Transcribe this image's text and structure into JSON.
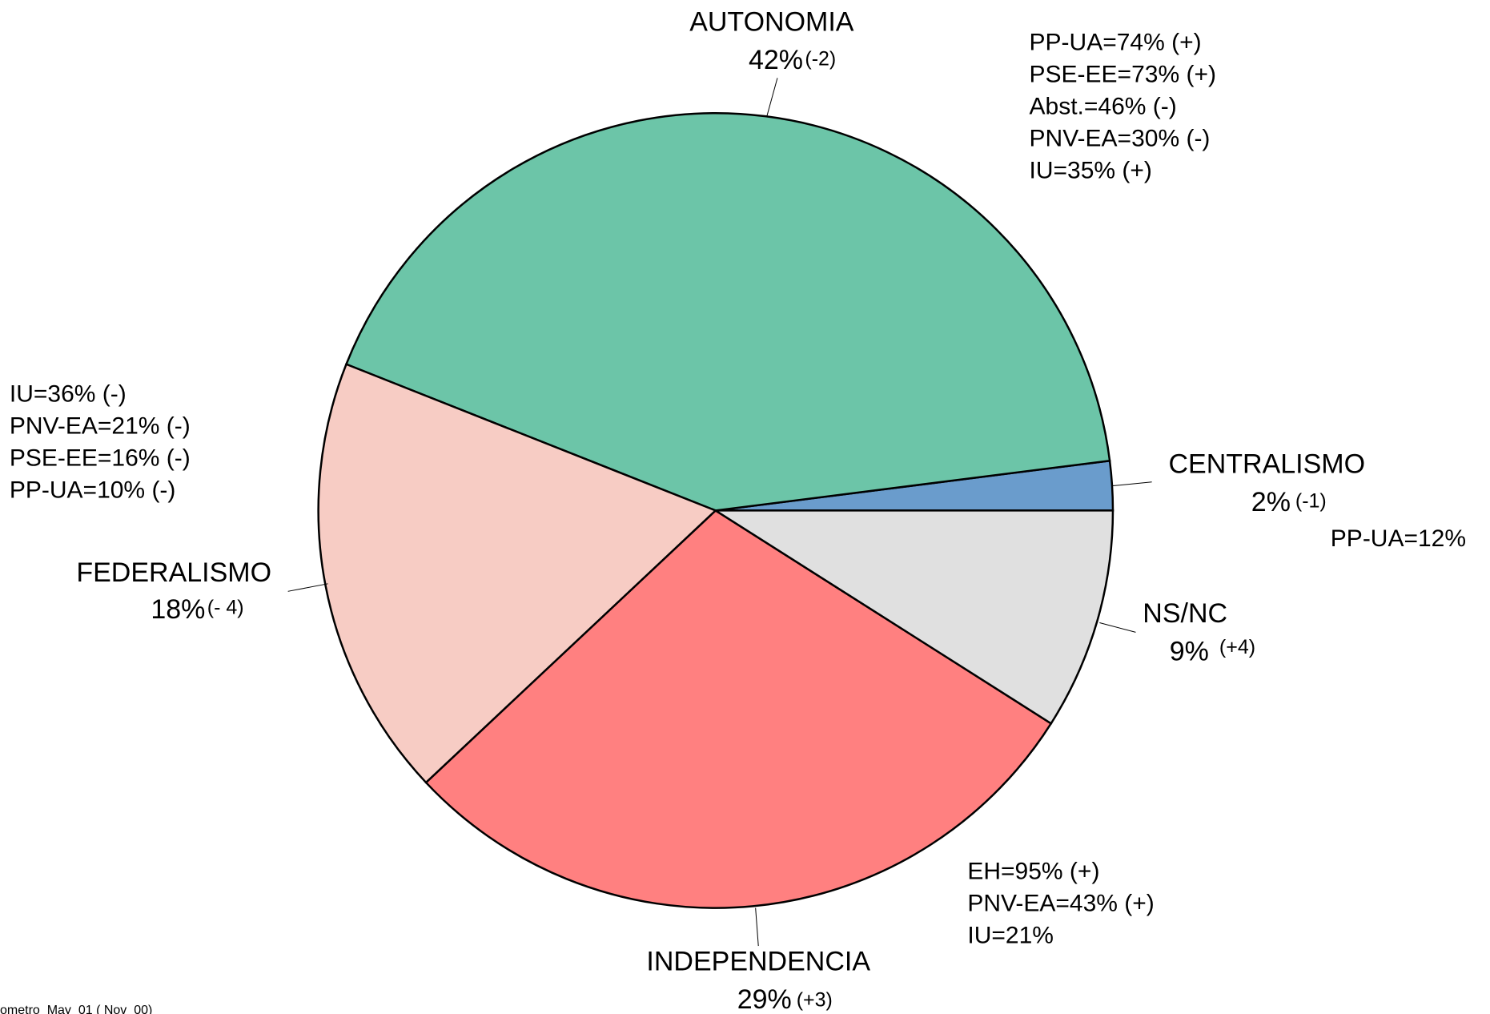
{
  "chart_data": {
    "type": "pie",
    "categories": [
      "CENTRALISMO",
      "AUTONOMIA",
      "FEDERALISMO",
      "INDEPENDENCIA",
      "NS/NC"
    ],
    "values": [
      2,
      42,
      18,
      29,
      9
    ],
    "value_labels": [
      "2%",
      "42%",
      "18%",
      "29%",
      "9%"
    ],
    "changes": [
      "(-1)",
      "(-2)",
      "(- 4)",
      "(+3)",
      "(+4)"
    ],
    "colors": [
      "#6a9ccc",
      "#6cc5a8",
      "#f7ccc4",
      "#ff8080",
      "#e0e0e0"
    ],
    "annotations": [
      [
        "PP-UA=12%"
      ],
      [
        "PP-UA=74% (+)",
        "PSE-EE=73% (+)",
        "Abst.=46% (-)",
        "PNV-EA=30% (-)",
        "IU=35% (+)"
      ],
      [
        "IU=36% (-)",
        "PNV-EA=21% (-)",
        "PSE-EE=16% (-)",
        "PP-UA=10% (-)"
      ],
      [
        "EH=95% (+)",
        "PNV-EA=43% (+)",
        "IU=21%"
      ],
      []
    ],
    "footnote": "ometro_May_01  ( Nov_00)"
  }
}
